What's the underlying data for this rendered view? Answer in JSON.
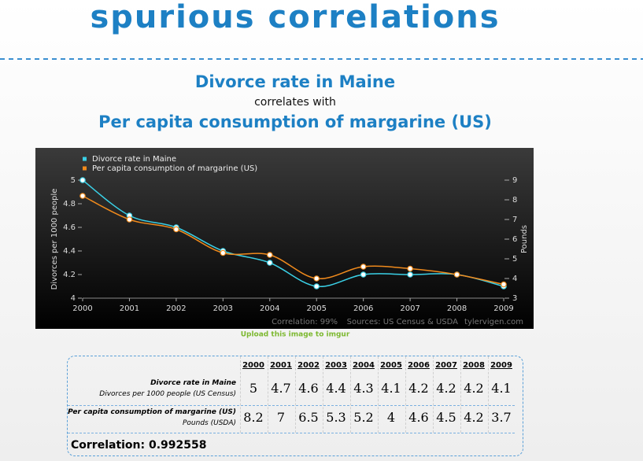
{
  "site_title": "spurious correlations",
  "heading": {
    "line1": "Divorce rate in Maine",
    "connector": "correlates with",
    "line2": "Per capita consumption of margarine (US)"
  },
  "chart_data": {
    "type": "line",
    "x": [
      2000,
      2001,
      2002,
      2003,
      2004,
      2005,
      2006,
      2007,
      2008,
      2009
    ],
    "xlim": [
      2000,
      2009
    ],
    "xticks": [
      2000,
      2001,
      2002,
      2003,
      2004,
      2005,
      2006,
      2007,
      2008,
      2009
    ],
    "ylim": [
      4,
      5
    ],
    "yticks": [
      4,
      4.2,
      4.4,
      4.6,
      4.8,
      5
    ],
    "y2lim": [
      3,
      9
    ],
    "y2ticks": [
      3,
      4,
      5,
      6,
      7,
      8,
      9
    ],
    "ylabel": "Divorces per 1000 people",
    "y2label": "Pounds",
    "legend": "top-left",
    "series": [
      {
        "name": "Divorce rate in Maine",
        "color": "#3ad0e6",
        "values": [
          5,
          4.7,
          4.6,
          4.4,
          4.3,
          4.1,
          4.2,
          4.2,
          4.2,
          4.1
        ]
      },
      {
        "name": "Per capita consumption of margarine (US)",
        "color": "#f08a1c",
        "axis": "y2",
        "values": [
          8.2,
          7,
          6.5,
          5.3,
          5.2,
          4,
          4.6,
          4.5,
          4.2,
          3.7
        ]
      }
    ],
    "footer": {
      "correlation": "Correlation: 99%",
      "sources": "Sources: US Census & USDA",
      "credit": "tylervigen.com"
    }
  },
  "upload_link": "Upload this image to imgur",
  "table": {
    "columns": [
      2000,
      2001,
      2002,
      2003,
      2004,
      2005,
      2006,
      2007,
      2008,
      2009
    ],
    "rows": [
      {
        "name": "Divorce rate in Maine",
        "unit": "Divorces per 1000 people (US Census)",
        "values": [
          5,
          4.7,
          4.6,
          4.4,
          4.3,
          4.1,
          4.2,
          4.2,
          4.2,
          4.1
        ]
      },
      {
        "name": "Per capita consumption of margarine (US)",
        "unit": "Pounds (USDA)",
        "values": [
          8.2,
          7,
          6.5,
          5.3,
          5.2,
          4,
          4.6,
          4.5,
          4.2,
          3.7
        ]
      }
    ],
    "correlation": "Correlation: 0.992558"
  }
}
